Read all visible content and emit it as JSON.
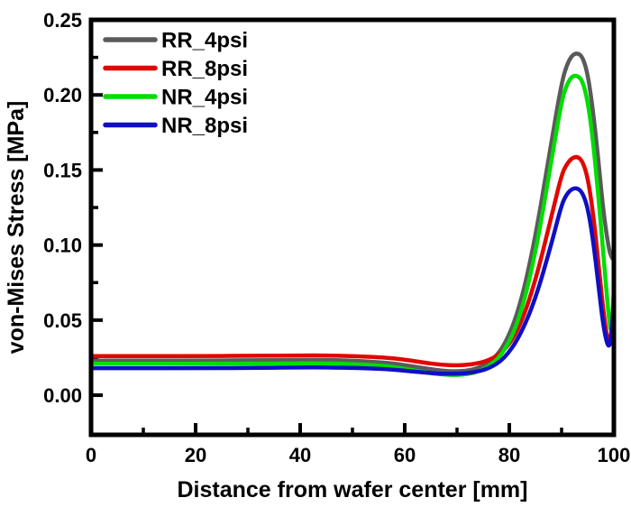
{
  "figure": {
    "background": "#ffffff"
  },
  "chart_data": {
    "type": "line",
    "title": "",
    "xlabel": "Distance from wafer center [mm]",
    "ylabel": "von-Mises Stress [MPa]",
    "xlim": [
      0,
      100
    ],
    "ylim": [
      -0.0264,
      0.25
    ],
    "grid": false,
    "legend_position": "top-left",
    "axis_color": "#000000",
    "x_major_ticks": [
      {
        "v": 0,
        "label": "0"
      },
      {
        "v": 20,
        "label": "20"
      },
      {
        "v": 40,
        "label": "40"
      },
      {
        "v": 60,
        "label": "60"
      },
      {
        "v": 80,
        "label": "80"
      },
      {
        "v": 100,
        "label": "100"
      }
    ],
    "x_minor_ticks": [
      10,
      30,
      50,
      70,
      90
    ],
    "y_major_ticks": [
      {
        "v": 0.0,
        "label": "0.00"
      },
      {
        "v": 0.05,
        "label": "0.05"
      },
      {
        "v": 0.1,
        "label": "0.10"
      },
      {
        "v": 0.15,
        "label": "0.15"
      },
      {
        "v": 0.2,
        "label": "0.20"
      },
      {
        "v": 0.25,
        "label": "0.25"
      }
    ],
    "y_minor_ticks": [
      0.025,
      0.075,
      0.125,
      0.175,
      0.225
    ],
    "x": [
      0,
      10,
      20,
      30,
      40,
      45,
      50,
      55,
      58,
      61,
      64,
      67,
      70,
      73,
      76,
      79,
      82,
      85,
      88,
      90,
      91,
      92,
      93,
      94,
      95,
      96,
      97,
      98,
      99,
      99.5,
      100
    ],
    "series": [
      {
        "name": "RR_4psi",
        "color": "#5a5a5a",
        "values": [
          0.023,
          0.023,
          0.023,
          0.0232,
          0.0235,
          0.0235,
          0.023,
          0.022,
          0.021,
          0.0195,
          0.0178,
          0.0163,
          0.0158,
          0.0168,
          0.021,
          0.032,
          0.058,
          0.105,
          0.168,
          0.208,
          0.22,
          0.2265,
          0.228,
          0.2255,
          0.214,
          0.19,
          0.158,
          0.122,
          0.098,
          0.092,
          0.09
        ],
        "peak": {
          "x": 93,
          "y": 0.228
        }
      },
      {
        "name": "RR_8psi",
        "color": "#e10600",
        "values": [
          0.026,
          0.026,
          0.026,
          0.0262,
          0.0265,
          0.0265,
          0.026,
          0.0253,
          0.0245,
          0.0232,
          0.0215,
          0.0203,
          0.0198,
          0.0205,
          0.023,
          0.029,
          0.045,
          0.076,
          0.118,
          0.147,
          0.154,
          0.158,
          0.159,
          0.156,
          0.145,
          0.122,
          0.09,
          0.055,
          0.032,
          0.036,
          0.06
        ],
        "peak": {
          "x": 93,
          "y": 0.159
        }
      },
      {
        "name": "NR_4psi",
        "color": "#00dd00",
        "values": [
          0.021,
          0.021,
          0.021,
          0.021,
          0.0212,
          0.0212,
          0.0208,
          0.0198,
          0.0188,
          0.017,
          0.0152,
          0.0138,
          0.0133,
          0.0145,
          0.0185,
          0.0285,
          0.051,
          0.094,
          0.155,
          0.196,
          0.207,
          0.2125,
          0.213,
          0.2095,
          0.196,
          0.17,
          0.134,
          0.094,
          0.052,
          0.04,
          0.07
        ],
        "peak": {
          "x": 93,
          "y": 0.213
        }
      },
      {
        "name": "NR_8psi",
        "color": "#0f0fc4",
        "values": [
          0.018,
          0.018,
          0.018,
          0.0182,
          0.0185,
          0.0185,
          0.0182,
          0.0176,
          0.017,
          0.016,
          0.015,
          0.0143,
          0.0143,
          0.015,
          0.0175,
          0.024,
          0.039,
          0.064,
          0.1,
          0.127,
          0.134,
          0.1375,
          0.138,
          0.135,
          0.125,
          0.104,
          0.075,
          0.045,
          0.03,
          0.04,
          0.062
        ],
        "peak": {
          "x": 93,
          "y": 0.138
        }
      }
    ]
  }
}
